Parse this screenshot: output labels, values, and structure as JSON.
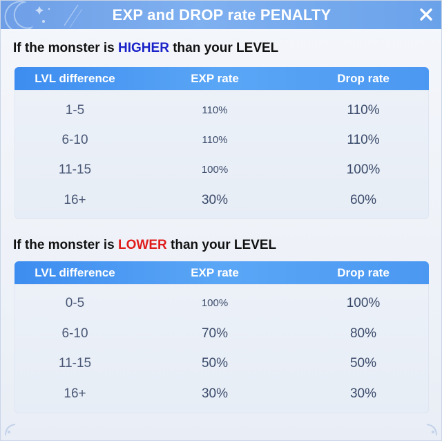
{
  "window": {
    "title": "EXP and DROP rate PENALTY"
  },
  "colors": {
    "titlebar": "#7fb0f0",
    "table_header": "#4b98f2",
    "higher_word": "#1a23c8",
    "lower_word": "#e01b1b"
  },
  "icons": {
    "close": "close-icon",
    "moon": "crescent-moon-icon"
  },
  "higher_section": {
    "heading_before": "If the monster is ",
    "heading_highlight": "HIGHER",
    "heading_after": " than your LEVEL",
    "columns": [
      "LVL difference",
      "EXP rate",
      "Drop rate"
    ],
    "rows": [
      {
        "lvl": "1-5",
        "exp": "110%",
        "drop": "110%"
      },
      {
        "lvl": "6-10",
        "exp": "110%",
        "drop": "110%"
      },
      {
        "lvl": "11-15",
        "exp": "100%",
        "drop": "100%"
      },
      {
        "lvl": "16+",
        "exp": "30%",
        "drop": "60%"
      }
    ]
  },
  "lower_section": {
    "heading_before": "If the monster is ",
    "heading_highlight": "LOWER",
    "heading_after": " than your LEVEL",
    "columns": [
      "LVL difference",
      "EXP rate",
      "Drop rate"
    ],
    "rows": [
      {
        "lvl": "0-5",
        "exp": "100%",
        "drop": "100%"
      },
      {
        "lvl": "6-10",
        "exp": "70%",
        "drop": "80%"
      },
      {
        "lvl": "11-15",
        "exp": "50%",
        "drop": "50%"
      },
      {
        "lvl": "16+",
        "exp": "30%",
        "drop": "30%"
      }
    ]
  }
}
